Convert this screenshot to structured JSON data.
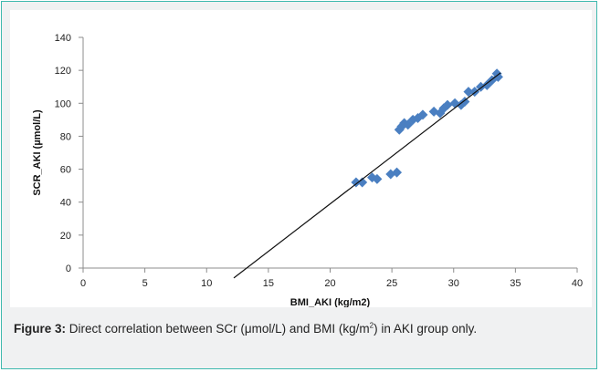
{
  "figure": {
    "caption_label": "Figure 3:",
    "caption_text_1": " Direct correlation between SCr (μmol/L) and BMI (kg/m",
    "caption_sup": "2",
    "caption_text_2": ") in AKI group only."
  },
  "chart_data": {
    "type": "scatter",
    "xlabel": "BMI_AKI (kg/m2)",
    "ylabel": "SCR_AKI (µmol/L)",
    "xlim": [
      0,
      40
    ],
    "ylim": [
      0,
      140
    ],
    "xticks": [
      0,
      5,
      10,
      15,
      20,
      25,
      30,
      35,
      40
    ],
    "yticks": [
      0,
      20,
      40,
      60,
      80,
      100,
      120,
      140
    ],
    "grid": false,
    "legend": "none",
    "marker_color": "#4a7fc1",
    "trendline": {
      "x": [
        12.2,
        33.8
      ],
      "y": [
        -6,
        118.5
      ]
    },
    "points": [
      {
        "x": 22.1,
        "y": 52
      },
      {
        "x": 22.6,
        "y": 52
      },
      {
        "x": 23.4,
        "y": 55
      },
      {
        "x": 23.8,
        "y": 54
      },
      {
        "x": 24.9,
        "y": 57
      },
      {
        "x": 25.4,
        "y": 58
      },
      {
        "x": 25.6,
        "y": 84
      },
      {
        "x": 25.8,
        "y": 86
      },
      {
        "x": 26.0,
        "y": 88
      },
      {
        "x": 26.3,
        "y": 87
      },
      {
        "x": 26.7,
        "y": 90
      },
      {
        "x": 27.1,
        "y": 91
      },
      {
        "x": 27.5,
        "y": 93
      },
      {
        "x": 28.4,
        "y": 95
      },
      {
        "x": 28.9,
        "y": 94
      },
      {
        "x": 29.2,
        "y": 97
      },
      {
        "x": 29.5,
        "y": 99
      },
      {
        "x": 30.1,
        "y": 100
      },
      {
        "x": 30.6,
        "y": 99
      },
      {
        "x": 30.9,
        "y": 101
      },
      {
        "x": 31.2,
        "y": 107
      },
      {
        "x": 31.7,
        "y": 107
      },
      {
        "x": 32.2,
        "y": 110
      },
      {
        "x": 32.7,
        "y": 111
      },
      {
        "x": 33.1,
        "y": 114
      },
      {
        "x": 33.5,
        "y": 118
      },
      {
        "x": 33.6,
        "y": 116
      }
    ]
  }
}
